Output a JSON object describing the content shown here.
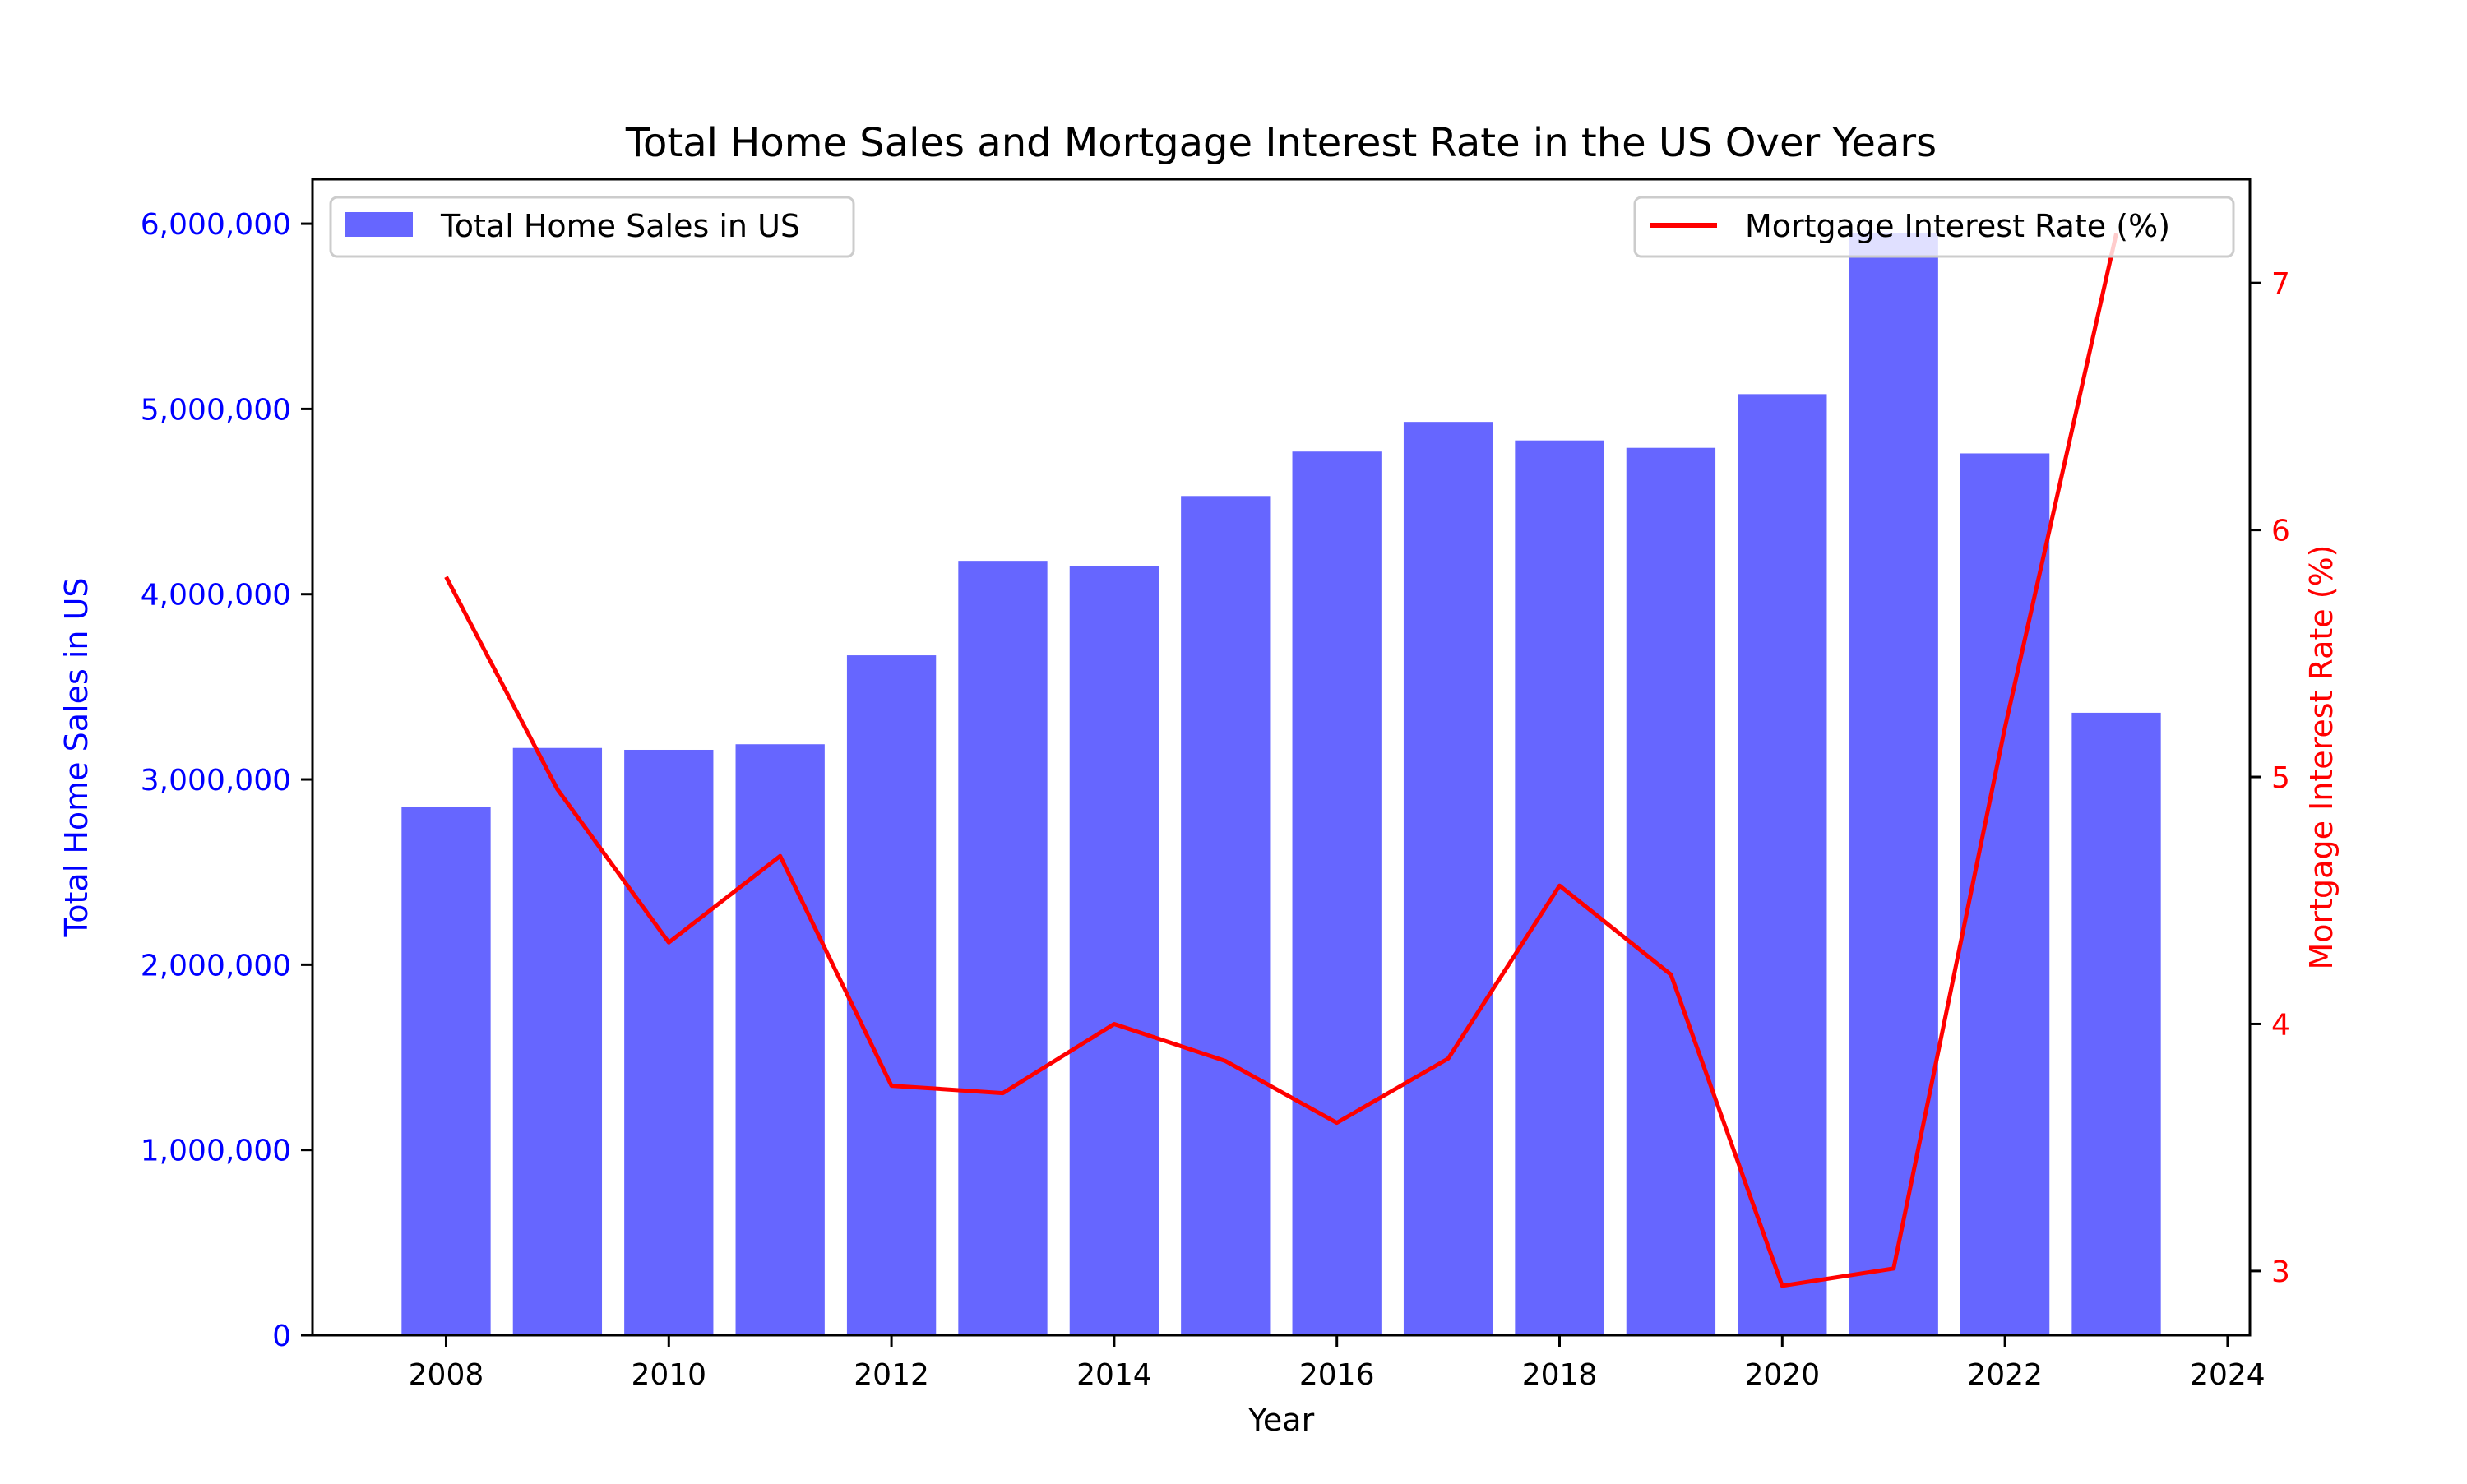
{
  "chart_data": {
    "type": "bar+line",
    "title": "Total Home Sales and Mortgage Interest Rate in the US Over Years",
    "xlabel": "Year",
    "ylabel_left": "Total Home Sales in US",
    "ylabel_right": "Mortgage Interest Rate (%)",
    "xlim": [
      2006.8,
      2024.2
    ],
    "ylim_left": [
      0,
      6240000
    ],
    "ylim_right": [
      2.74,
      7.42
    ],
    "x_ticks": [
      2008,
      2010,
      2012,
      2014,
      2016,
      2018,
      2020,
      2022,
      2024
    ],
    "x_tick_labels": [
      "2008",
      "2010",
      "2012",
      "2014",
      "2016",
      "2018",
      "2020",
      "2022",
      "2024"
    ],
    "y_left_ticks": [
      0,
      1000000,
      2000000,
      3000000,
      4000000,
      5000000,
      6000000
    ],
    "y_left_tick_labels": [
      "0",
      "1,000,000",
      "2,000,000",
      "3,000,000",
      "4,000,000",
      "5,000,000",
      "6,000,000"
    ],
    "y_right_ticks": [
      3,
      4,
      5,
      6,
      7
    ],
    "y_right_tick_labels": [
      "3",
      "4",
      "5",
      "6",
      "7"
    ],
    "bar_series": {
      "name": "Total Home Sales in US",
      "color": "#6666ff",
      "x": [
        2008,
        2009,
        2010,
        2011,
        2012,
        2013,
        2014,
        2015,
        2016,
        2017,
        2018,
        2019,
        2020,
        2021,
        2022,
        2023
      ],
      "values": [
        2850000,
        3170000,
        3160000,
        3190000,
        3670000,
        4180000,
        4150000,
        4530000,
        4770000,
        4930000,
        4830000,
        4790000,
        5080000,
        5950000,
        4760000,
        3360000
      ]
    },
    "line_series": {
      "name": "Mortgage Interest Rate (%)",
      "color": "#ff0000",
      "x": [
        2008,
        2009,
        2010,
        2011,
        2012,
        2013,
        2014,
        2015,
        2016,
        2017,
        2018,
        2019,
        2020,
        2021,
        2022,
        2023
      ],
      "values": [
        5.81,
        4.95,
        4.33,
        4.68,
        3.75,
        3.72,
        4.0,
        3.85,
        3.6,
        3.86,
        4.56,
        4.2,
        2.94,
        3.01,
        5.2,
        7.2
      ]
    },
    "legend_left_position": "upper-left",
    "legend_right_position": "upper-right",
    "grid": false,
    "left_axis_color": "#0000ff",
    "right_axis_color": "#ff0000"
  }
}
